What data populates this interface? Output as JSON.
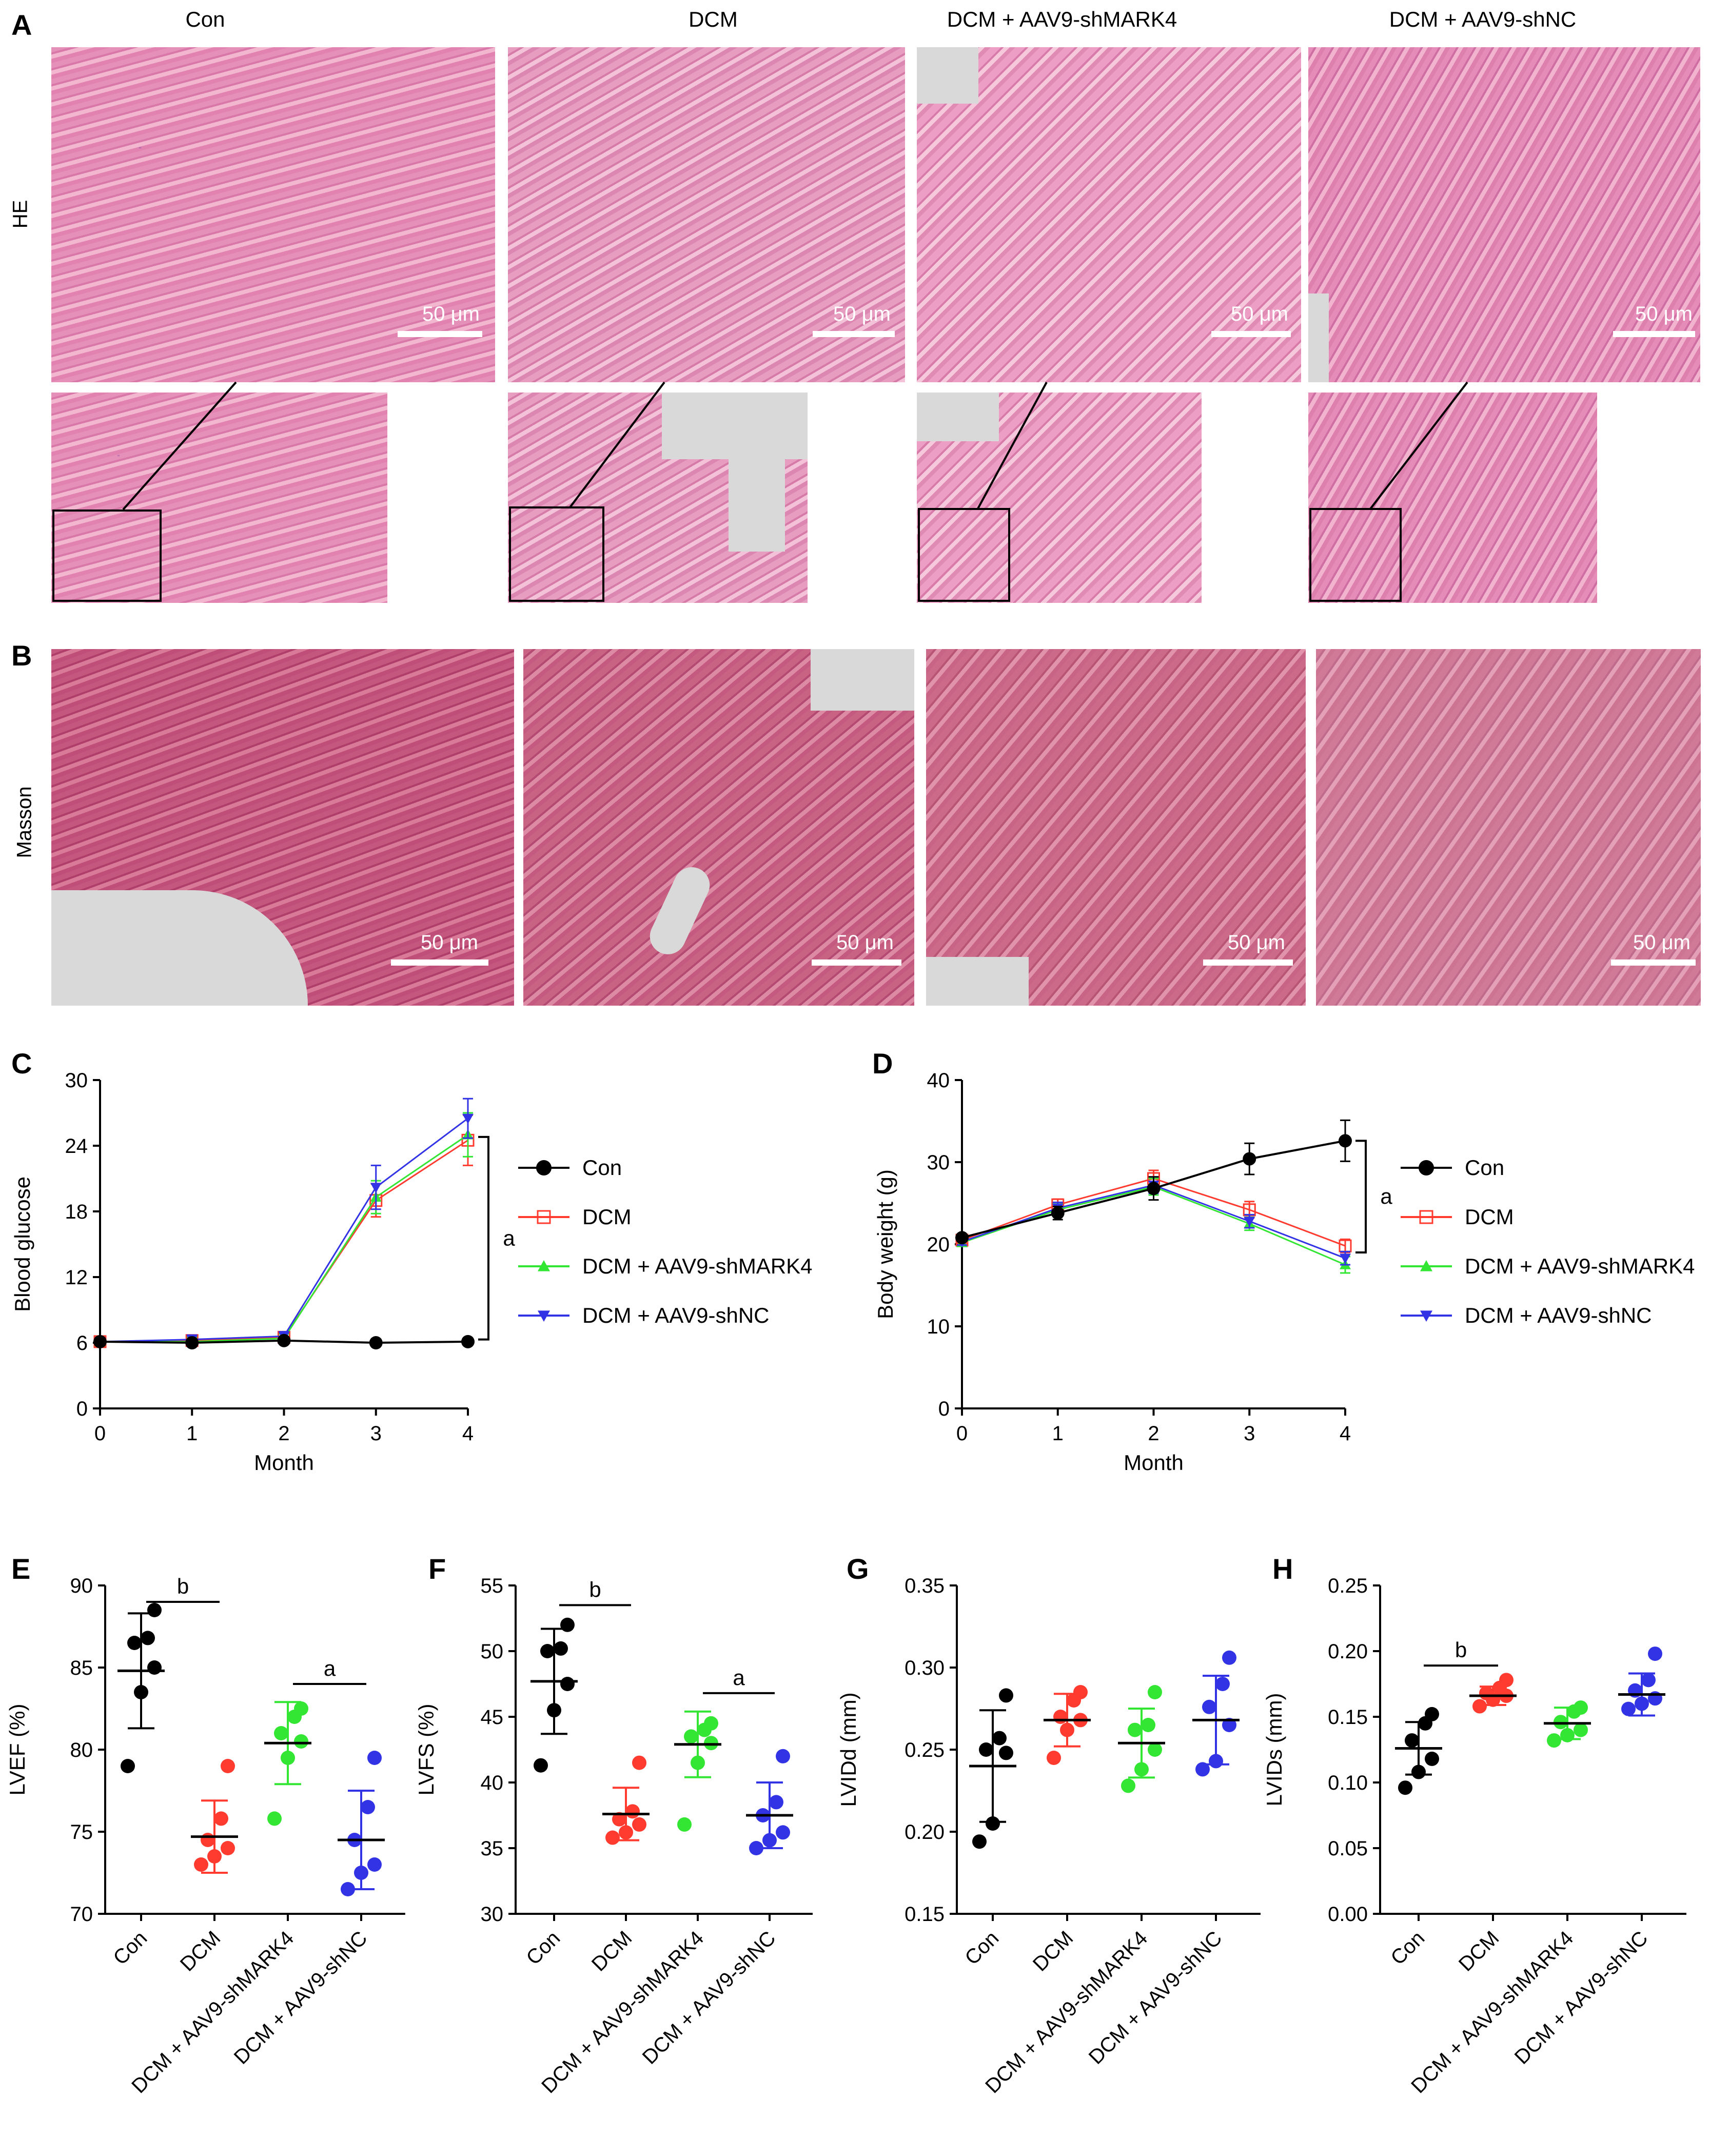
{
  "panels": {
    "A": "A",
    "B": "B",
    "C": "C",
    "D": "D",
    "E": "E",
    "F": "F",
    "G": "G",
    "H": "H"
  },
  "column_titles": [
    "Con",
    "DCM",
    "DCM + AAV9-shMARK4",
    "DCM + AAV9-shNC"
  ],
  "row_labels": {
    "he": "HE",
    "masson": "Masson"
  },
  "scale_bar": "50 μm",
  "colors": {
    "con": "#000000",
    "dcm": "#ff3b30",
    "shmark4": "#33e633",
    "shnc": "#3333e6"
  },
  "chart_data": [
    {
      "id": "C",
      "type": "line",
      "xlabel": "Month",
      "ylabel": "Blood glucose",
      "x": [
        0,
        1,
        2,
        3,
        4
      ],
      "ylim": [
        0,
        30
      ],
      "yticks": [
        0,
        6,
        12,
        18,
        24,
        30
      ],
      "annotation": "a",
      "series": [
        {
          "name": "Con",
          "values": [
            6.1,
            6.0,
            6.2,
            6.0,
            6.1
          ],
          "err": [
            0.2,
            0.3,
            0.3,
            0.3,
            0.3
          ]
        },
        {
          "name": "DCM",
          "values": [
            6.1,
            6.2,
            6.5,
            19.0,
            24.5
          ],
          "err": [
            0.2,
            0.4,
            0.4,
            1.5,
            2.3
          ]
        },
        {
          "name": "DCM + AAV9-shMARK4",
          "values": [
            6.1,
            6.1,
            6.4,
            19.3,
            25.0
          ],
          "err": [
            0.2,
            0.4,
            0.4,
            1.5,
            2.0
          ]
        },
        {
          "name": "DCM + AAV9-shNC",
          "values": [
            6.1,
            6.3,
            6.6,
            20.2,
            26.5
          ],
          "err": [
            0.2,
            0.4,
            0.4,
            2.0,
            1.8
          ]
        }
      ]
    },
    {
      "id": "D",
      "type": "line",
      "xlabel": "Month",
      "ylabel": "Body weight (g)",
      "x": [
        0,
        1,
        2,
        3,
        4
      ],
      "ylim": [
        0,
        40
      ],
      "yticks": [
        0,
        10,
        20,
        30,
        40
      ],
      "annotation": "a",
      "series": [
        {
          "name": "Con",
          "values": [
            20.8,
            23.8,
            26.8,
            30.4,
            32.6
          ],
          "err": [
            0.4,
            0.8,
            1.4,
            1.9,
            2.5
          ]
        },
        {
          "name": "DCM",
          "values": [
            20.5,
            24.8,
            28.0,
            24.2,
            19.8
          ],
          "err": [
            0.4,
            0.7,
            1.0,
            1.0,
            0.8
          ]
        },
        {
          "name": "DCM + AAV9-shMARK4",
          "values": [
            20.2,
            24.2,
            27.0,
            22.5,
            17.5
          ],
          "err": [
            0.4,
            0.7,
            1.0,
            0.8,
            1.0
          ]
        },
        {
          "name": "DCM + AAV9-shNC",
          "values": [
            20.3,
            24.4,
            27.2,
            22.8,
            18.3
          ],
          "err": [
            0.4,
            0.7,
            1.0,
            0.8,
            0.8
          ]
        }
      ]
    },
    {
      "id": "E",
      "type": "scatter",
      "ylabel": "LVEF (%)",
      "categories": [
        "Con",
        "DCM",
        "DCM + AAV9-shMARK4",
        "DCM + AAV9-shNC"
      ],
      "ylim": [
        70,
        90
      ],
      "yticks": [
        70,
        75,
        80,
        85,
        90
      ],
      "groups": [
        {
          "points": [
            79.0,
            83.5,
            85.0,
            86.5,
            86.8,
            88.5
          ],
          "mean": 84.8,
          "sd": 3.5
        },
        {
          "points": [
            73.0,
            73.5,
            74.0,
            74.5,
            75.8,
            79.0
          ],
          "mean": 74.7,
          "sd": 2.2
        },
        {
          "points": [
            75.8,
            79.5,
            80.5,
            81.0,
            82.0,
            82.5
          ],
          "mean": 80.4,
          "sd": 2.5
        },
        {
          "points": [
            71.5,
            72.5,
            73.0,
            74.5,
            76.5,
            79.5
          ],
          "mean": 74.5,
          "sd": 3.0
        }
      ],
      "sig": [
        {
          "from": 0,
          "to": 1,
          "label": "b",
          "y": 89.0
        },
        {
          "from": 2,
          "to": 3,
          "label": "a",
          "y": 84.0
        }
      ]
    },
    {
      "id": "F",
      "type": "scatter",
      "ylabel": "LVFS (%)",
      "categories": [
        "Con",
        "DCM",
        "DCM + AAV9-shMARK4",
        "DCM + AAV9-shNC"
      ],
      "ylim": [
        30,
        55
      ],
      "yticks": [
        30,
        35,
        40,
        45,
        50,
        55
      ],
      "groups": [
        {
          "points": [
            41.3,
            45.5,
            47.5,
            50.0,
            50.2,
            52.0
          ],
          "mean": 47.7,
          "sd": 4.0
        },
        {
          "points": [
            35.8,
            36.2,
            36.8,
            37.2,
            37.8,
            41.5
          ],
          "mean": 37.6,
          "sd": 2.0
        },
        {
          "points": [
            36.8,
            41.5,
            43.0,
            43.5,
            44.0,
            44.5
          ],
          "mean": 42.9,
          "sd": 2.5
        },
        {
          "points": [
            35.0,
            35.6,
            36.2,
            37.5,
            38.5,
            42.0
          ],
          "mean": 37.5,
          "sd": 2.5
        }
      ],
      "sig": [
        {
          "from": 0,
          "to": 1,
          "label": "b",
          "y": 53.5
        },
        {
          "from": 2,
          "to": 3,
          "label": "a",
          "y": 46.8
        }
      ]
    },
    {
      "id": "G",
      "type": "scatter",
      "ylabel": "LVIDd (mm)",
      "categories": [
        "Con",
        "DCM",
        "DCM + AAV9-shMARK4",
        "DCM + AAV9-shNC"
      ],
      "ylim": [
        0.15,
        0.35
      ],
      "yticks": [
        0.15,
        0.2,
        0.25,
        0.3,
        0.35
      ],
      "decimals": 2,
      "groups": [
        {
          "points": [
            0.194,
            0.205,
            0.248,
            0.25,
            0.257,
            0.283
          ],
          "mean": 0.24,
          "sd": 0.034
        },
        {
          "points": [
            0.245,
            0.262,
            0.268,
            0.27,
            0.28,
            0.285
          ],
          "mean": 0.268,
          "sd": 0.016
        },
        {
          "points": [
            0.228,
            0.238,
            0.25,
            0.262,
            0.265,
            0.285
          ],
          "mean": 0.254,
          "sd": 0.021
        },
        {
          "points": [
            0.238,
            0.243,
            0.265,
            0.276,
            0.29,
            0.306
          ],
          "mean": 0.268,
          "sd": 0.027
        }
      ],
      "sig": []
    },
    {
      "id": "H",
      "type": "scatter",
      "ylabel": "LVIDs (mm)",
      "categories": [
        "Con",
        "DCM",
        "DCM + AAV9-shMARK4",
        "DCM + AAV9-shNC"
      ],
      "ylim": [
        0.0,
        0.25
      ],
      "yticks": [
        0.0,
        0.05,
        0.1,
        0.15,
        0.2,
        0.25
      ],
      "decimals": 2,
      "groups": [
        {
          "points": [
            0.096,
            0.108,
            0.118,
            0.132,
            0.145,
            0.152
          ],
          "mean": 0.126,
          "sd": 0.02
        },
        {
          "points": [
            0.158,
            0.163,
            0.166,
            0.168,
            0.172,
            0.178
          ],
          "mean": 0.166,
          "sd": 0.007
        },
        {
          "points": [
            0.132,
            0.136,
            0.14,
            0.146,
            0.154,
            0.157
          ],
          "mean": 0.145,
          "sd": 0.012
        },
        {
          "points": [
            0.156,
            0.16,
            0.164,
            0.17,
            0.178,
            0.198
          ],
          "mean": 0.167,
          "sd": 0.016
        }
      ],
      "sig": [
        {
          "from": 0,
          "to": 1,
          "label": "b",
          "y": 0.189
        }
      ]
    }
  ]
}
